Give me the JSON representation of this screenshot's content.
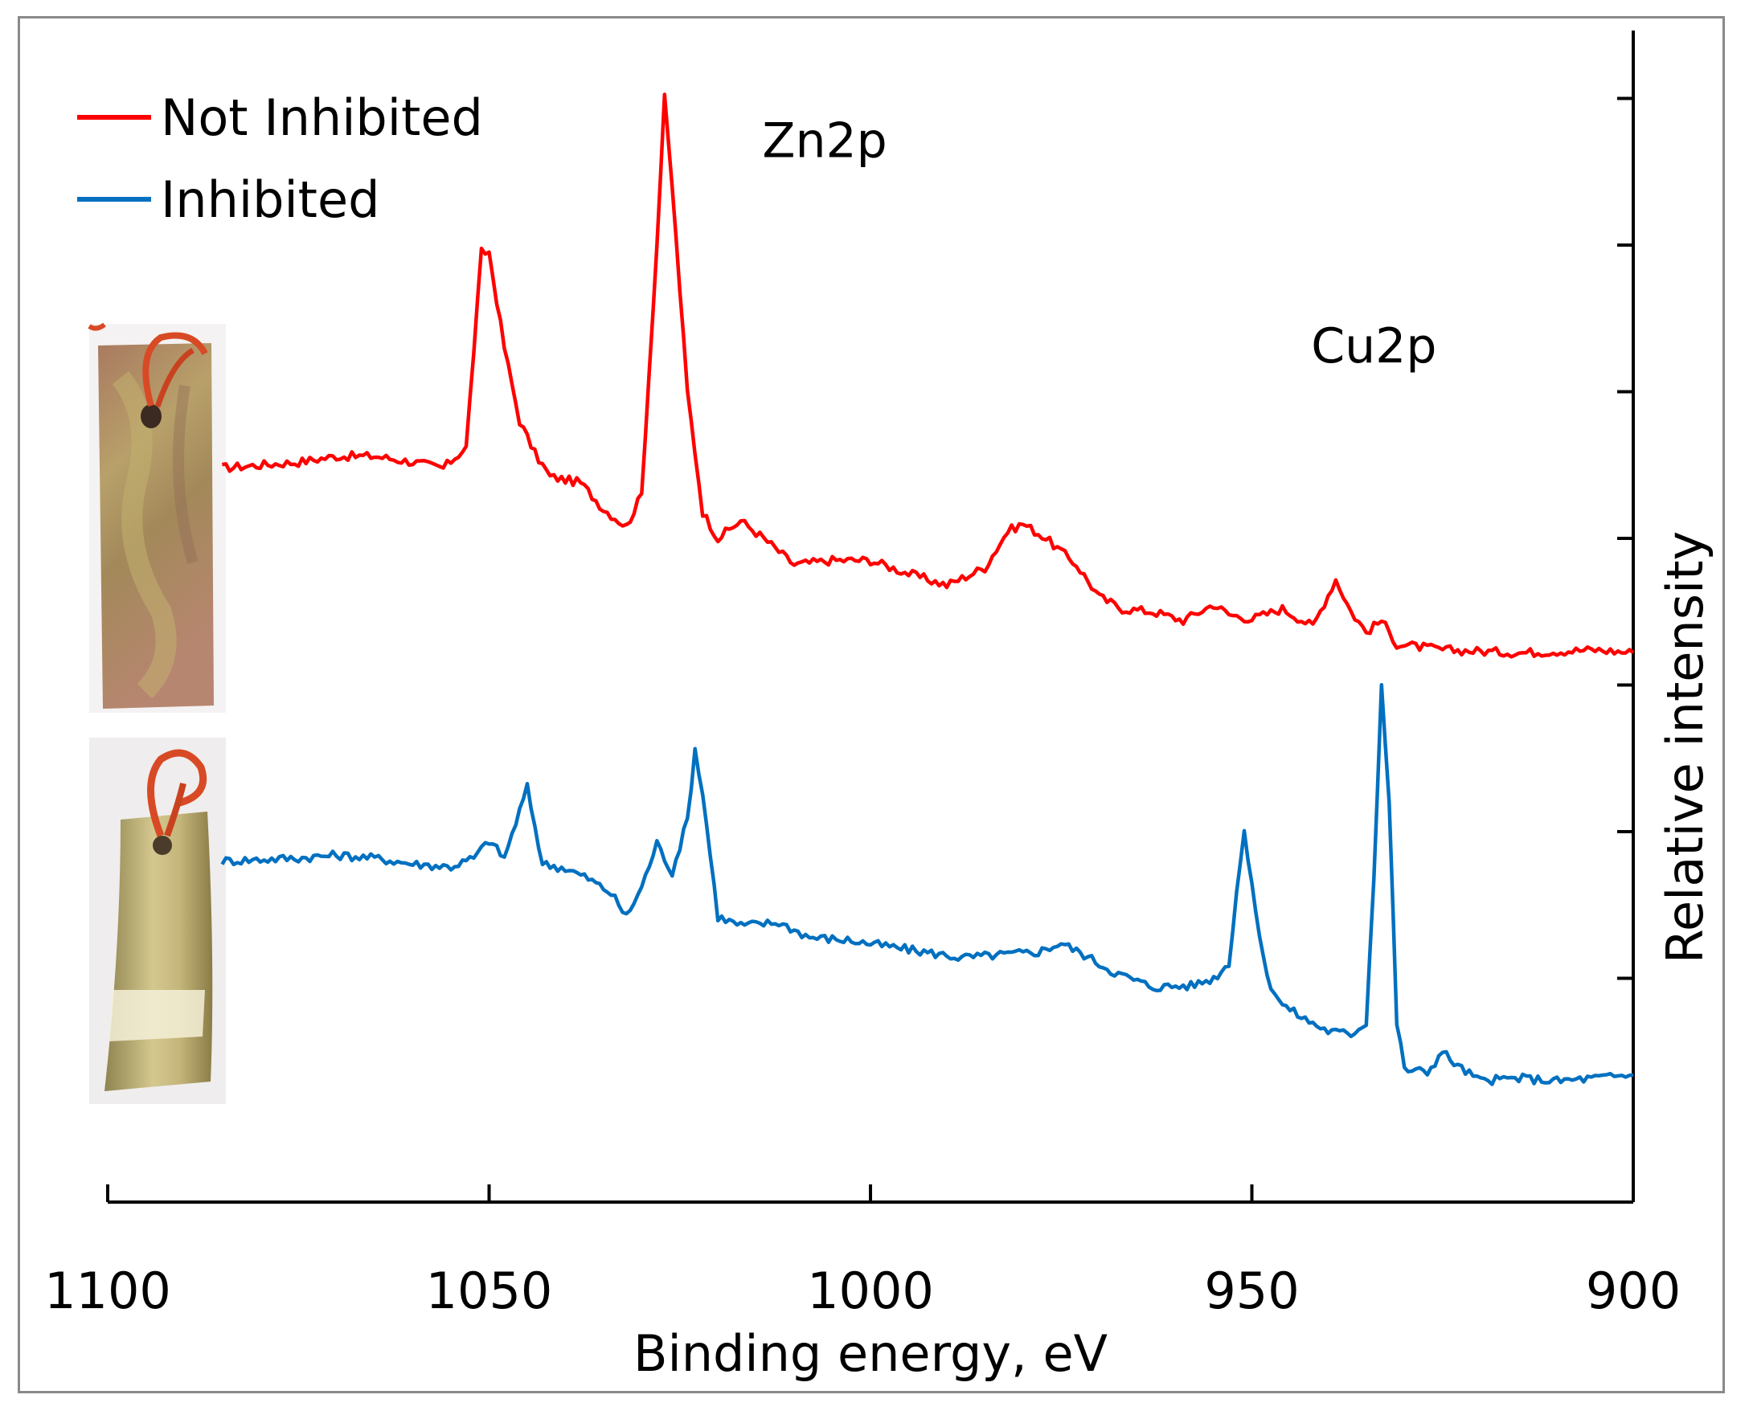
{
  "chart_data": {
    "type": "line",
    "title": "",
    "xlabel": "Binding energy, eV",
    "ylabel": "Relative intensity",
    "xlim": [
      1100,
      900
    ],
    "x_reversed": true,
    "ylim": [
      0,
      8
    ],
    "x_ticks": [
      1100,
      1050,
      1000,
      950,
      900
    ],
    "x_tick_labels": [
      "1100",
      "1050",
      "1000",
      "950",
      "900"
    ],
    "y_tick_values": [
      1,
      2,
      3,
      4,
      5,
      6,
      7,
      8
    ],
    "y_tick_labels_shown": false,
    "legend_position": "top-left",
    "annotations": [
      {
        "text": "Zn2p",
        "x": 1006,
        "y": 6.6
      },
      {
        "text": "Cu2p",
        "x": 934,
        "y": 5.2
      }
    ],
    "series": [
      {
        "name": "Not Inhibited",
        "color": "#ff0000",
        "points": [
          [
            1085,
            4.48
          ],
          [
            1075,
            4.52
          ],
          [
            1070,
            4.56
          ],
          [
            1065,
            4.56
          ],
          [
            1060,
            4.52
          ],
          [
            1056,
            4.48
          ],
          [
            1053,
            4.62
          ],
          [
            1051,
            5.95
          ],
          [
            1050,
            5.95
          ],
          [
            1048,
            5.3
          ],
          [
            1046,
            4.8
          ],
          [
            1044,
            4.58
          ],
          [
            1042,
            4.42
          ],
          [
            1038,
            4.38
          ],
          [
            1035,
            4.2
          ],
          [
            1032,
            4.08
          ],
          [
            1030,
            4.3
          ],
          [
            1028,
            6.0
          ],
          [
            1027,
            7.0
          ],
          [
            1026,
            6.4
          ],
          [
            1024,
            5.0
          ],
          [
            1022,
            4.18
          ],
          [
            1020,
            4.0
          ],
          [
            1017,
            4.12
          ],
          [
            1014,
            4.0
          ],
          [
            1010,
            3.82
          ],
          [
            1005,
            3.85
          ],
          [
            1000,
            3.85
          ],
          [
            995,
            3.76
          ],
          [
            990,
            3.68
          ],
          [
            985,
            3.8
          ],
          [
            982,
            4.05
          ],
          [
            980,
            4.1
          ],
          [
            977,
            4.0
          ],
          [
            973,
            3.82
          ],
          [
            970,
            3.6
          ],
          [
            967,
            3.52
          ],
          [
            963,
            3.5
          ],
          [
            959,
            3.44
          ],
          [
            955,
            3.55
          ],
          [
            953,
            3.48
          ],
          [
            950,
            3.45
          ],
          [
            946,
            3.52
          ],
          [
            942,
            3.4
          ],
          [
            939,
            3.72
          ],
          [
            937,
            3.5
          ],
          [
            935,
            3.36
          ],
          [
            933,
            3.44
          ],
          [
            931,
            3.28
          ],
          [
            925,
            3.24
          ],
          [
            915,
            3.22
          ],
          [
            905,
            3.24
          ],
          [
            900,
            3.22
          ]
        ]
      },
      {
        "name": "Inhibited",
        "color": "#0070c0",
        "points": [
          [
            1085,
            1.8
          ],
          [
            1075,
            1.82
          ],
          [
            1070,
            1.84
          ],
          [
            1065,
            1.82
          ],
          [
            1060,
            1.78
          ],
          [
            1055,
            1.76
          ],
          [
            1052,
            1.82
          ],
          [
            1050,
            1.94
          ],
          [
            1048,
            1.82
          ],
          [
            1046,
            2.14
          ],
          [
            1045,
            2.3
          ],
          [
            1043,
            1.78
          ],
          [
            1040,
            1.75
          ],
          [
            1037,
            1.68
          ],
          [
            1034,
            1.58
          ],
          [
            1032,
            1.42
          ],
          [
            1030,
            1.62
          ],
          [
            1028,
            1.92
          ],
          [
            1026,
            1.72
          ],
          [
            1024,
            2.08
          ],
          [
            1023,
            2.56
          ],
          [
            1022,
            2.26
          ],
          [
            1020,
            1.42
          ],
          [
            1017,
            1.36
          ],
          [
            1012,
            1.38
          ],
          [
            1008,
            1.28
          ],
          [
            1003,
            1.26
          ],
          [
            998,
            1.22
          ],
          [
            993,
            1.18
          ],
          [
            988,
            1.14
          ],
          [
            983,
            1.16
          ],
          [
            978,
            1.18
          ],
          [
            975,
            1.24
          ],
          [
            972,
            1.16
          ],
          [
            968,
            1.04
          ],
          [
            963,
            0.94
          ],
          [
            958,
            0.95
          ],
          [
            955,
            1.0
          ],
          [
            953,
            1.1
          ],
          [
            952,
            1.6
          ],
          [
            951,
            2.0
          ],
          [
            950,
            1.62
          ],
          [
            948,
            1.0
          ],
          [
            946,
            0.82
          ],
          [
            943,
            0.72
          ],
          [
            940,
            0.64
          ],
          [
            937,
            0.62
          ],
          [
            935,
            0.7
          ],
          [
            934,
            1.7
          ],
          [
            933,
            3.0
          ],
          [
            932,
            2.2
          ],
          [
            931,
            0.7
          ],
          [
            930,
            0.38
          ],
          [
            927,
            0.36
          ],
          [
            925,
            0.5
          ],
          [
            923,
            0.4
          ],
          [
            920,
            0.3
          ],
          [
            915,
            0.32
          ],
          [
            910,
            0.3
          ],
          [
            905,
            0.32
          ],
          [
            900,
            0.34
          ]
        ]
      }
    ]
  },
  "legend": {
    "items": [
      {
        "label": "Not Inhibited",
        "color": "#ff0000"
      },
      {
        "label": "Inhibited",
        "color": "#0070c0"
      }
    ]
  },
  "photos": {
    "top": {
      "kind": "corroded brass coupon photo"
    },
    "bottom": {
      "kind": "polished brass coupon photo"
    }
  }
}
